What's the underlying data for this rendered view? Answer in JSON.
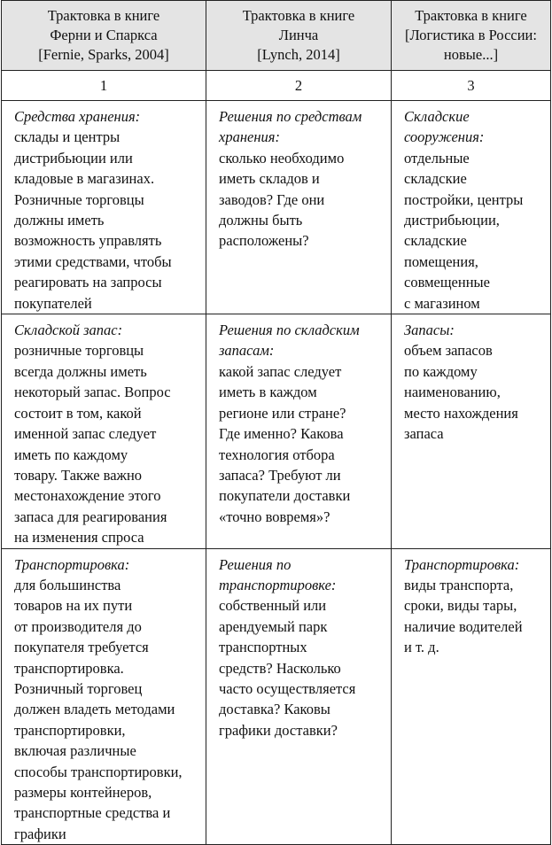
{
  "table": {
    "headers": [
      "Трактовка в книге\nФерни и Спаркса\n[Fernie, Sparks, 2004]",
      "Трактовка в книге\nЛинча\n[Lynch, 2014]",
      "Трактовка в книге\n[Логистика в России:\nновые...]"
    ],
    "column_numbers": [
      "1",
      "2",
      "3"
    ],
    "rows": [
      [
        {
          "title": "Средства хранения:",
          "text": "склады и центры\nдистрибьюции или\nкладовые в магазинах.\nРозничные торговцы\nдолжны иметь\nвозможность управлять\nэтими средствами, чтобы\nреагировать на запросы\nпокупателей"
        },
        {
          "title": "Решения по средствам\nхранения:",
          "text": "сколько необходимо\nиметь складов и\nзаводов? Где они\nдолжны быть\nрасположены?"
        },
        {
          "title": "Складские\nсооружения:",
          "text": "отдельные\nскладские\nпостройки, центры\nдистрибьюции,\nскладские\nпомещения,\nсовмещенные\nс магазином"
        }
      ],
      [
        {
          "title": "Складской запас:",
          "text": "розничные торговцы\nвсегда должны иметь\nнекоторый запас. Вопрос\nсостоит в том, какой\nименной запас следует\nиметь по каждому\nтовару. Также важно\nместонахождение этого\nзапаса для реагирования\nна изменения спроса"
        },
        {
          "title": "Решения по складским\nзапасам:",
          "text": "какой запас следует\nиметь в каждом\nрегионе или стране?\nГде именно? Какова\nтехнология отбора\nзапаса? Требуют ли\nпокупатели доставки\n«точно вовремя»?"
        },
        {
          "title": "Запасы:",
          "text": "объем запасов\nпо каждому\nнаименованию,\nместо нахождения\nзапаса"
        }
      ],
      [
        {
          "title": "Транспортировка:",
          "text": "для большинства\nтоваров на их пути\nот производителя до\nпокупателя требуется\nтранспортировка.\nРозничный торговец\nдолжен владеть методами\nтранспортировки,\nвключая различные\nспособы транспортировки,\nразмеры контейнеров,\nтранспортные средства и\nграфики"
        },
        {
          "title": "Решения по\nтранспортировке:",
          "text": "собственный или\nарендуемый парк\nтранспортных\nсредств? Насколько\nчасто осуществляется\nдоставка? Каковы\nграфики доставки?"
        },
        {
          "title": "Транспортировка:",
          "text": "виды транспорта,\nсроки, виды тары,\nналичие водителей\nи т. д."
        }
      ]
    ]
  }
}
